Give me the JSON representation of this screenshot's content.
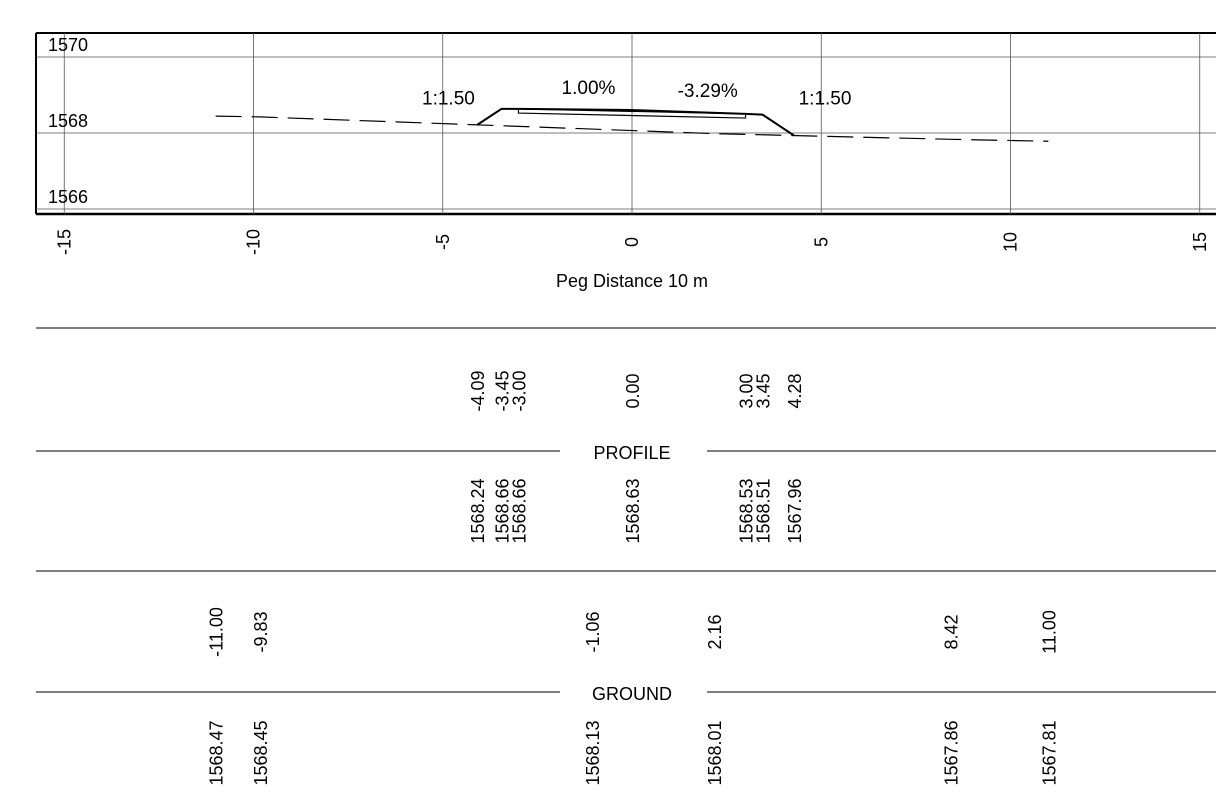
{
  "chart_data": {
    "type": "cross-section",
    "x_axis": {
      "label": "Peg Distance 10 m",
      "ticks": [
        -15,
        -10,
        -5,
        0,
        5,
        10,
        15
      ],
      "tick_labels": [
        "-15",
        "-10",
        "-5",
        "0",
        "5",
        "10",
        "15"
      ],
      "range": [
        -15.5,
        15
      ]
    },
    "y_axis": {
      "ticks": [
        1570,
        1568,
        1566
      ],
      "tick_labels": [
        "1570",
        "1568",
        "1566"
      ],
      "range": [
        1565.8,
        1570
      ]
    },
    "grid": true,
    "ground_line": {
      "style": "dashed",
      "points": [
        {
          "x": -11.0,
          "y": 1568.47
        },
        {
          "x": -9.83,
          "y": 1568.45
        },
        {
          "x": -1.06,
          "y": 1568.13
        },
        {
          "x": 2.16,
          "y": 1568.01
        },
        {
          "x": 8.42,
          "y": 1567.86
        },
        {
          "x": 11.0,
          "y": 1567.81
        }
      ]
    },
    "profile_line": {
      "style": "solid",
      "points": [
        {
          "x": -4.09,
          "y": 1568.24
        },
        {
          "x": -3.45,
          "y": 1568.66
        },
        {
          "x": -3.0,
          "y": 1568.66
        },
        {
          "x": 0.0,
          "y": 1568.63
        },
        {
          "x": 3.0,
          "y": 1568.53
        },
        {
          "x": 3.45,
          "y": 1568.51
        },
        {
          "x": 4.28,
          "y": 1567.96
        }
      ]
    },
    "pavement_layer": {
      "points": [
        {
          "x": -3.0,
          "y": 1568.66
        },
        {
          "x": 3.0,
          "y": 1568.53
        },
        {
          "x": 3.0,
          "y": 1568.42
        },
        {
          "x": -3.0,
          "y": 1568.55
        }
      ]
    },
    "annotations": [
      {
        "text": "1:1.50",
        "x": -4.85,
        "y": 1568.78
      },
      {
        "text": "1.00%",
        "x": -1.15,
        "y": 1569.05
      },
      {
        "text": "-3.29%",
        "x": 2.0,
        "y": 1568.98
      },
      {
        "text": "1:1.50",
        "x": 5.1,
        "y": 1568.78
      }
    ],
    "table": {
      "sections": [
        {
          "title": "PROFILE",
          "offsets": [
            "-4.09",
            "-3.45",
            "-3.00",
            "0.00",
            "3.00",
            "3.45",
            "4.28"
          ],
          "offset_positions": [
            -4.09,
            -3.45,
            -3.0,
            0.0,
            3.0,
            3.45,
            4.28
          ],
          "levels": [
            "1568.24",
            "1568.66",
            "1568.66",
            "1568.63",
            "1568.53",
            "1568.51",
            "1567.96"
          ]
        },
        {
          "title": "GROUND",
          "offsets": [
            "-11.00",
            "-9.83",
            "-1.06",
            "2.16",
            "8.42",
            "11.00"
          ],
          "offset_positions": [
            -11.0,
            -9.83,
            -1.06,
            2.16,
            8.42,
            11.0
          ],
          "levels": [
            "1568.47",
            "1568.45",
            "1568.13",
            "1568.01",
            "1567.86",
            "1567.81"
          ]
        }
      ]
    }
  }
}
